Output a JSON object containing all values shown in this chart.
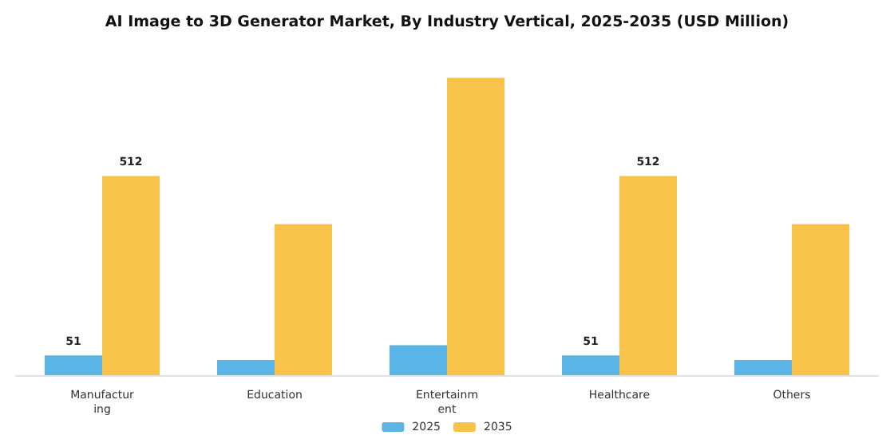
{
  "chart_data": {
    "type": "bar",
    "title": "AI Image to 3D Generator Market, By Industry Vertical, 2025-2035 (USD Million)",
    "categories": [
      "Manufacturing",
      "Education",
      "Entertainment",
      "Healthcare",
      "Others"
    ],
    "series": [
      {
        "name": "2025",
        "color": "#5ab4e5",
        "values": [
          51,
          39,
          77,
          51,
          39
        ],
        "value_labels": [
          "51",
          null,
          null,
          "51",
          null
        ]
      },
      {
        "name": "2035",
        "color": "#f9c34a",
        "values": [
          512,
          388,
          764,
          512,
          388
        ],
        "value_labels": [
          "512",
          null,
          null,
          "512",
          null
        ]
      }
    ],
    "legend": "bottom"
  }
}
